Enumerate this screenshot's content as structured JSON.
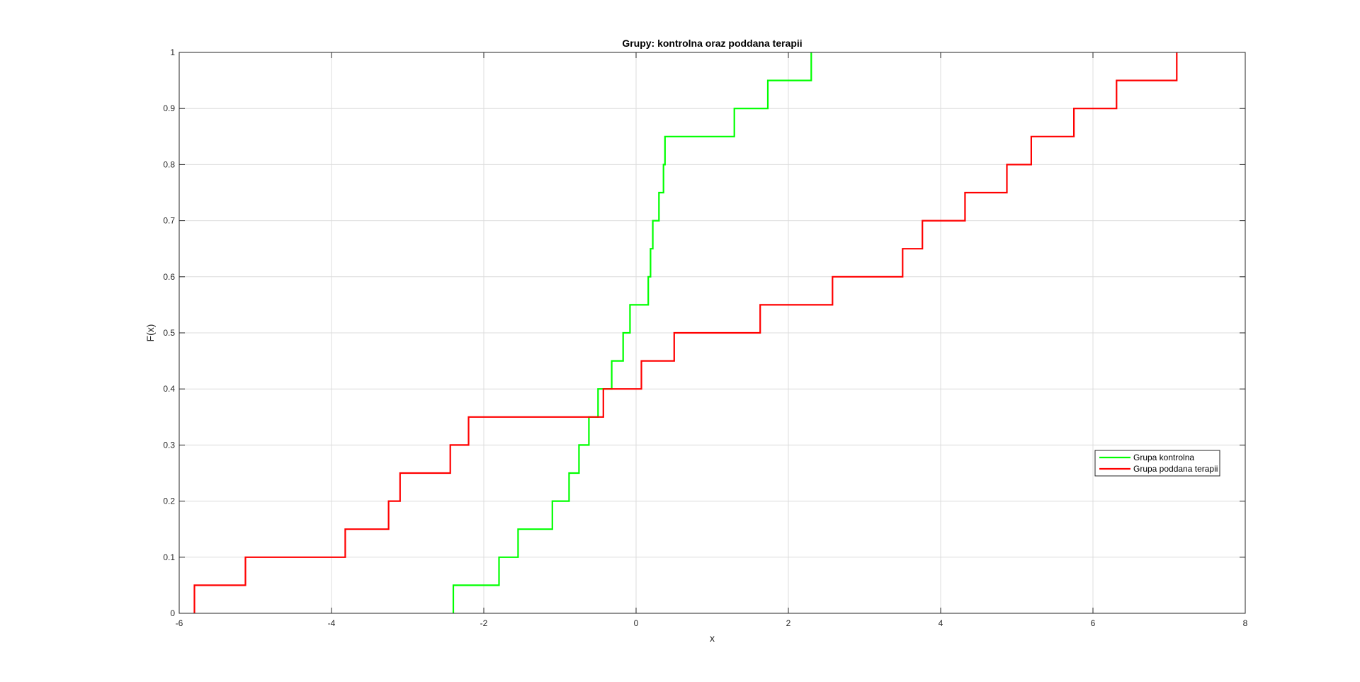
{
  "chart_data": {
    "type": "line",
    "title": "Grupy: kontrolna oraz poddana terapii",
    "xlabel": "x",
    "ylabel": "F(x)",
    "xlim": [
      -6,
      8
    ],
    "ylim": [
      0,
      1
    ],
    "xticks": [
      "-6",
      "-4",
      "-2",
      "0",
      "2",
      "4",
      "6",
      "8"
    ],
    "yticks": [
      "0",
      "0.1",
      "0.2",
      "0.3",
      "0.4",
      "0.5",
      "0.6",
      "0.7",
      "0.8",
      "0.9",
      "1"
    ],
    "grid": true,
    "legend_position": "right",
    "series": [
      {
        "name": "Grupa kontrolna",
        "color": "#00ff00",
        "step_x": [
          -2.4,
          -1.8,
          -1.55,
          -1.1,
          -0.88,
          -0.75,
          -0.62,
          -0.5,
          -0.32,
          -0.17,
          -0.08,
          0.16,
          0.19,
          0.22,
          0.3,
          0.36,
          0.38,
          1.29,
          1.73,
          2.3
        ],
        "step_y": [
          0.05,
          0.1,
          0.15,
          0.2,
          0.25,
          0.3,
          0.35,
          0.4,
          0.45,
          0.5,
          0.55,
          0.6,
          0.65,
          0.7,
          0.75,
          0.8,
          0.85,
          0.9,
          0.95,
          1.0
        ]
      },
      {
        "name": "Grupa poddana terapii",
        "color": "#ff0000",
        "step_x": [
          -5.8,
          -5.13,
          -3.82,
          -3.25,
          -3.1,
          -2.44,
          -2.2,
          -0.43,
          0.07,
          0.5,
          1.63,
          2.58,
          3.5,
          3.76,
          4.32,
          4.87,
          5.19,
          5.75,
          6.31,
          7.1
        ],
        "step_y": [
          0.05,
          0.1,
          0.15,
          0.2,
          0.25,
          0.3,
          0.35,
          0.4,
          0.45,
          0.5,
          0.55,
          0.6,
          0.65,
          0.7,
          0.75,
          0.8,
          0.85,
          0.9,
          0.95,
          1.0
        ]
      }
    ]
  }
}
